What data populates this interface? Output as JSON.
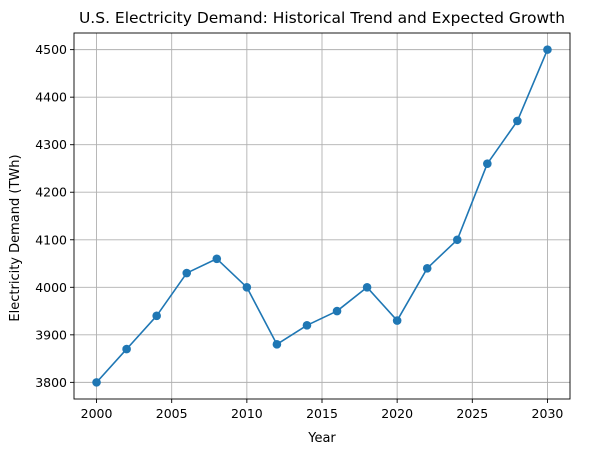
{
  "chart_data": {
    "type": "line",
    "title": "U.S. Electricity Demand: Historical Trend and Expected Growth",
    "xlabel": "Year",
    "ylabel": "Electricity Demand (TWh)",
    "x": [
      2000,
      2002,
      2004,
      2006,
      2008,
      2010,
      2012,
      2014,
      2016,
      2018,
      2020,
      2022,
      2024,
      2026,
      2028,
      2030
    ],
    "series": [
      {
        "values": [
          3800,
          3870,
          3940,
          4030,
          4060,
          4000,
          3880,
          3920,
          3950,
          4000,
          3930,
          4040,
          4100,
          4260,
          4350,
          4500
        ],
        "color": "#1f77b4",
        "marker": "circle"
      }
    ],
    "xlim": [
      1998.5,
      2031.5
    ],
    "ylim": [
      3765,
      4535
    ],
    "xticks": [
      2000,
      2005,
      2010,
      2015,
      2020,
      2025,
      2030
    ],
    "xtick_labels": [
      "2000",
      "2005",
      "2010",
      "2015",
      "2020",
      "2025",
      "2030"
    ],
    "yticks": [
      3800,
      3900,
      4000,
      4100,
      4200,
      4300,
      4400,
      4500
    ],
    "ytick_labels": [
      "3800",
      "3900",
      "4000",
      "4100",
      "4200",
      "4300",
      "4400",
      "4500"
    ],
    "grid": true,
    "grid_color": "#b0b0b0",
    "legend": false
  }
}
